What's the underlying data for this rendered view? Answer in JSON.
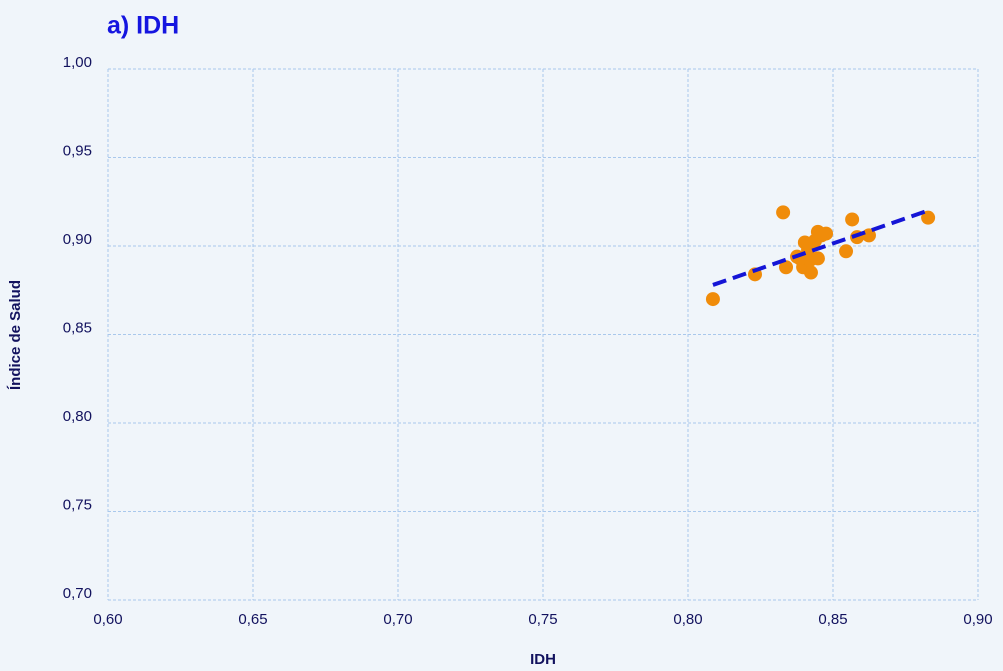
{
  "chart_data": {
    "type": "scatter",
    "title": "a) IDH",
    "xlabel": "IDH",
    "ylabel": "Índice de Salud",
    "xlim": [
      0.6,
      0.9
    ],
    "ylim": [
      0.7,
      1.0
    ],
    "xticks": [
      {
        "value": 0.6,
        "label": "0,60"
      },
      {
        "value": 0.65,
        "label": "0,65"
      },
      {
        "value": 0.7,
        "label": "0,70"
      },
      {
        "value": 0.75,
        "label": "0,75"
      },
      {
        "value": 0.8,
        "label": "0,80"
      },
      {
        "value": 0.85,
        "label": "0,85"
      },
      {
        "value": 0.9,
        "label": "0,90"
      }
    ],
    "yticks": [
      {
        "value": 0.7,
        "label": "0,70"
      },
      {
        "value": 0.75,
        "label": "0,75"
      },
      {
        "value": 0.8,
        "label": "0,80"
      },
      {
        "value": 0.85,
        "label": "0,85"
      },
      {
        "value": 0.9,
        "label": "0,90"
      },
      {
        "value": 0.95,
        "label": "0,95"
      },
      {
        "value": 1.0,
        "label": "1,00"
      }
    ],
    "grid": true,
    "color": "#f08c0a",
    "x": [
      0.8086,
      0.8231,
      0.8328,
      0.8338,
      0.8376,
      0.8403,
      0.8397,
      0.842,
      0.8424,
      0.8438,
      0.8448,
      0.846,
      0.8476,
      0.8448,
      0.8545,
      0.8566,
      0.8583,
      0.8624,
      0.8828,
      0.8386,
      0.8414
    ],
    "y": [
      0.87,
      0.884,
      0.919,
      0.888,
      0.894,
      0.902,
      0.888,
      0.892,
      0.885,
      0.903,
      0.908,
      0.906,
      0.907,
      0.893,
      0.897,
      0.915,
      0.905,
      0.906,
      0.916,
      0.893,
      0.898
    ],
    "trendline": {
      "x": [
        0.8086,
        0.8828
      ],
      "y": [
        0.878,
        0.92
      ],
      "color": "#1515d6"
    }
  }
}
